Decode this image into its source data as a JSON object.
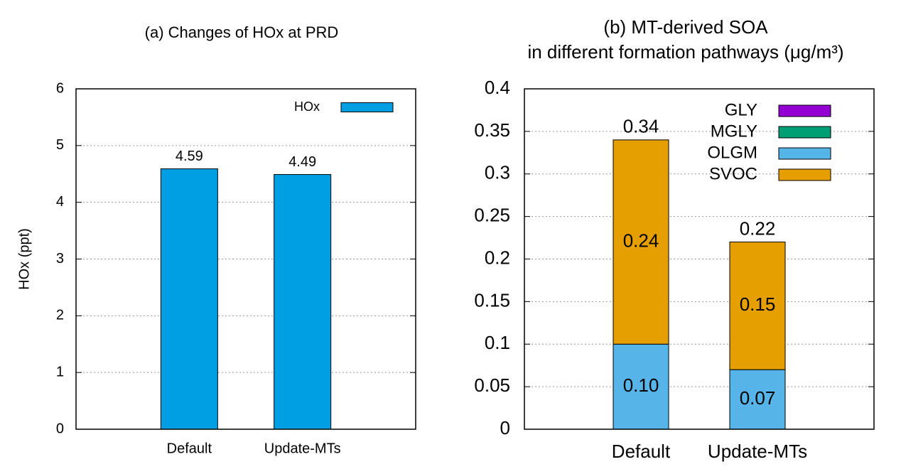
{
  "chart_data": [
    {
      "type": "bar",
      "title": [
        "(a) Changes of HOx at PRD"
      ],
      "ylabel": "HOx (ppt)",
      "categories": [
        "Default",
        "Update-MTs"
      ],
      "series": [
        {
          "name": "HOx",
          "color": "#009fe3",
          "values": [
            4.59,
            4.49
          ],
          "labels": true
        }
      ],
      "ylim": [
        0,
        6
      ],
      "yticks": [
        0,
        1,
        2,
        3,
        4,
        5,
        6
      ],
      "grid": true,
      "legend": "upper right"
    },
    {
      "type": "stacked_bar",
      "title": [
        "(b)  MT-derived SOA",
        "in different formation pathways (μg/m³)"
      ],
      "categories": [
        "Default",
        "Update-MTs"
      ],
      "series": [
        {
          "name": "GLY",
          "color": "#9400d3",
          "values": [
            0,
            0
          ]
        },
        {
          "name": "MGLY",
          "color": "#009e73",
          "values": [
            0,
            0
          ]
        },
        {
          "name": "OLGM",
          "color": "#56b4e9",
          "values": [
            0.1,
            0.07
          ],
          "value_labels": [
            "0.10",
            "0.07"
          ],
          "labels": true
        },
        {
          "name": "SVOC",
          "color": "#e69f00",
          "values": [
            0.24,
            0.15
          ],
          "labels": true
        }
      ],
      "totals": [
        0.34,
        0.22
      ],
      "ylim": [
        0,
        0.4
      ],
      "yticks": [
        0,
        0.05,
        0.1,
        0.15,
        0.2,
        0.25,
        0.3,
        0.35,
        0.4
      ],
      "grid": true,
      "legend": "upper right"
    }
  ]
}
